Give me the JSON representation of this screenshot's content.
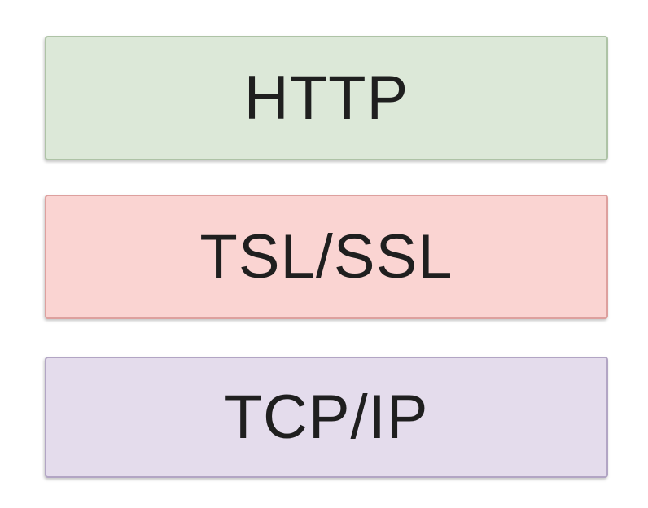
{
  "diagram": {
    "background_color": "#ffffff",
    "text_color": "#1f1f1f",
    "layers": [
      {
        "label": "HTTP",
        "fill_color": "#dce8d8",
        "border_color": "#aec3a6"
      },
      {
        "label": "TSL/SSL",
        "fill_color": "#fad4d2",
        "border_color": "#dda09e"
      },
      {
        "label": "TCP/IP",
        "fill_color": "#e4dcec",
        "border_color": "#b2a5c4"
      }
    ]
  }
}
